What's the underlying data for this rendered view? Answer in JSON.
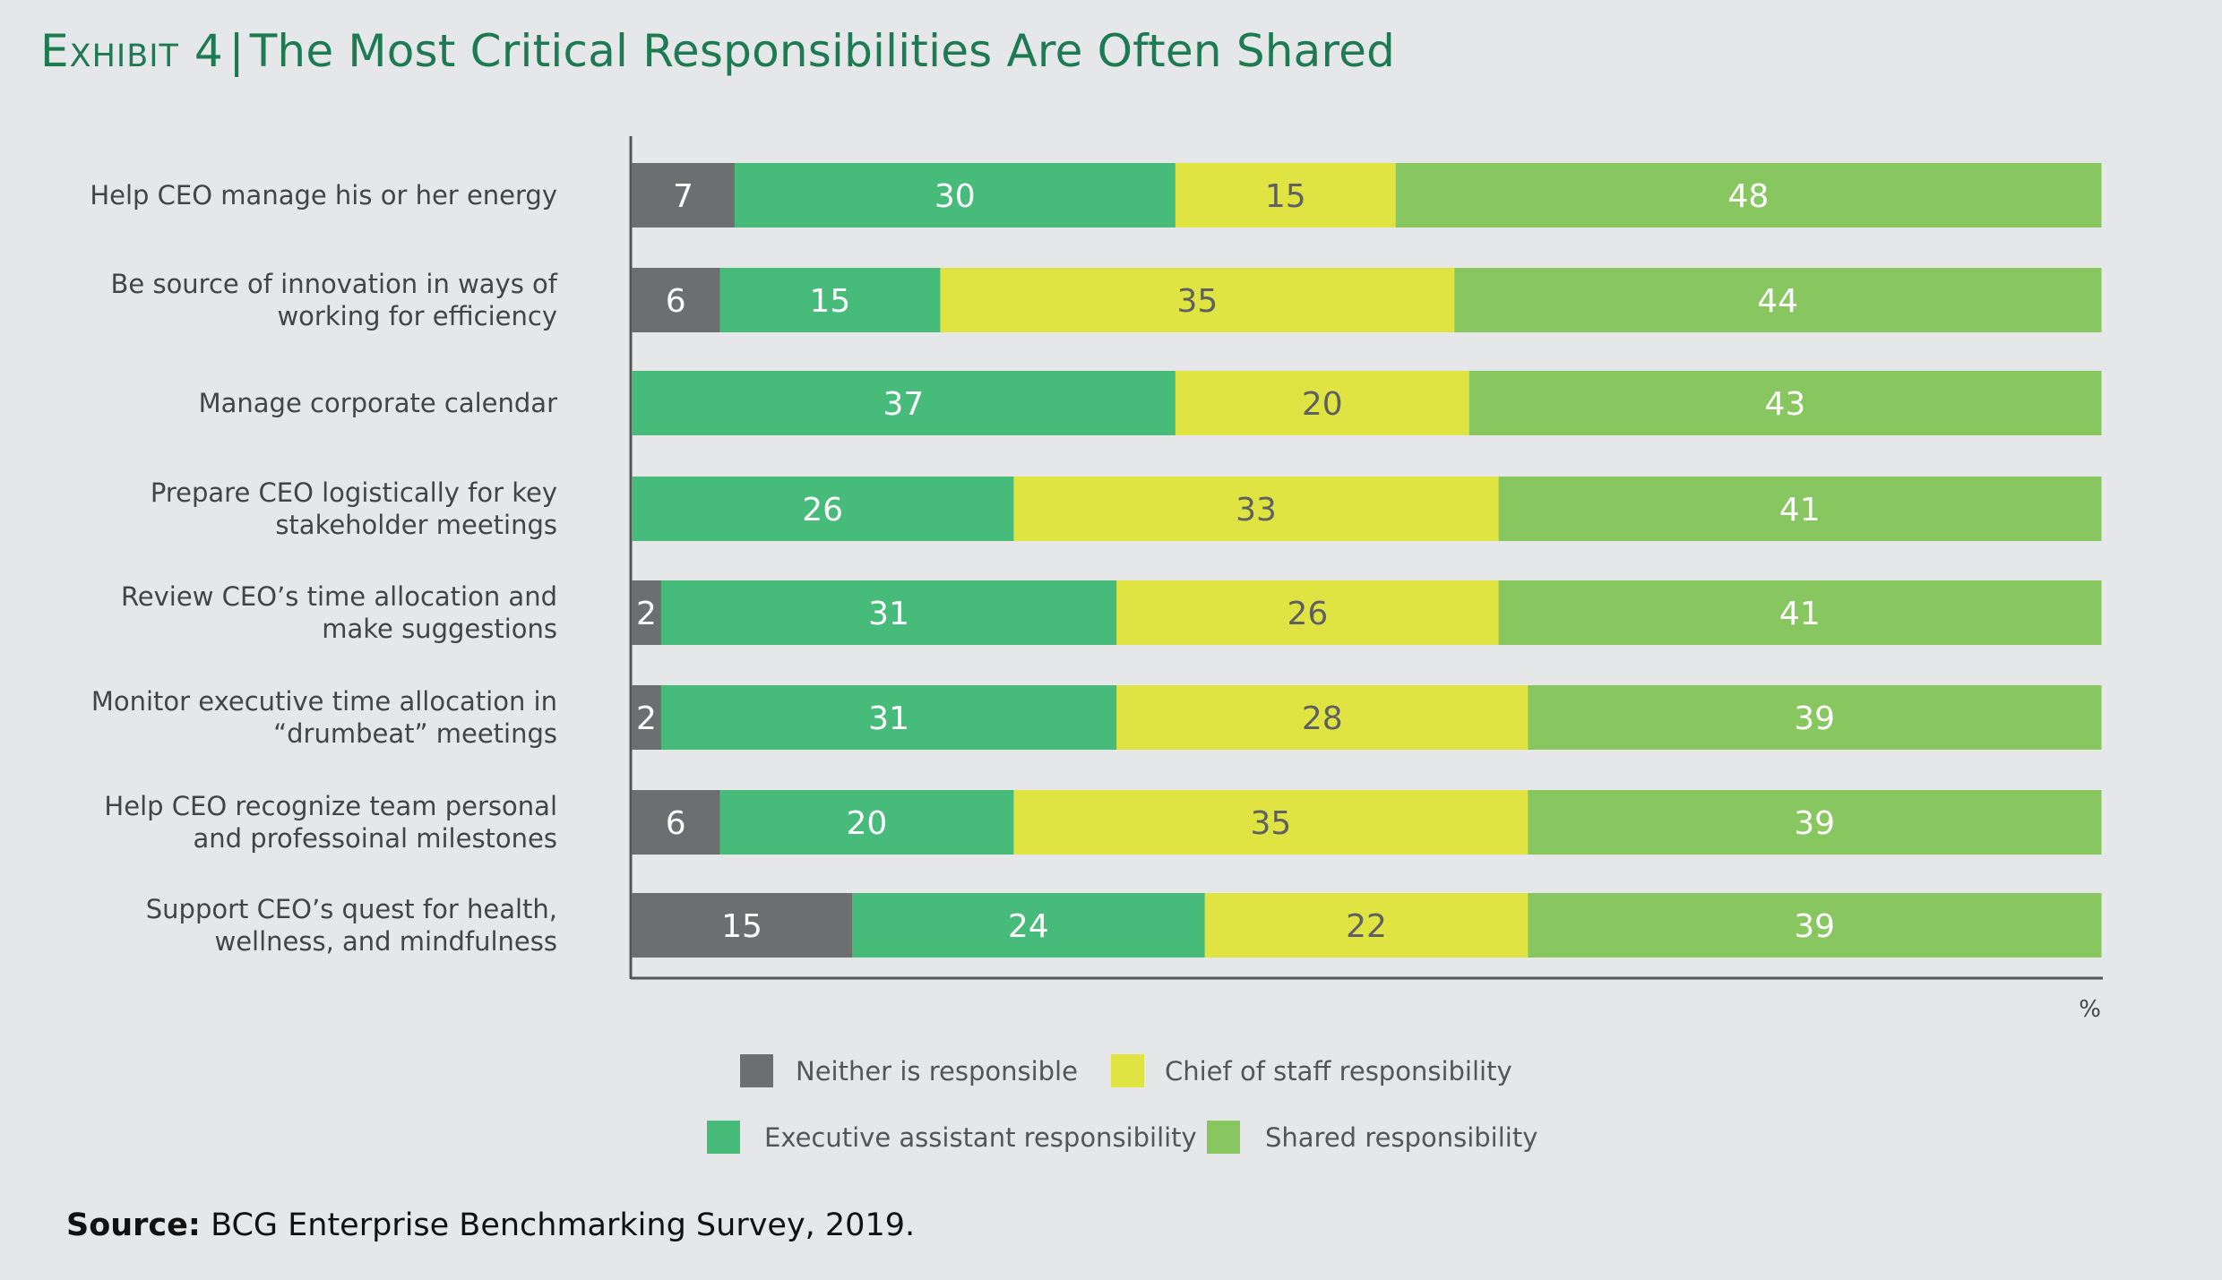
{
  "title": {
    "exhibit": "Exhibit 4",
    "separator": "|",
    "text": "The Most Critical Responsibilities Are Often Shared"
  },
  "chart_data": {
    "type": "bar",
    "orientation": "horizontal",
    "stacked": true,
    "title": "The Most Critical Responsibilities Are Often Shared",
    "unit_label": "%",
    "xlim": [
      0,
      100
    ],
    "categories": [
      [
        "Help CEO manage his or her energy"
      ],
      [
        "Be source of innovation in ways of",
        "working for efficiency"
      ],
      [
        "Manage corporate calendar"
      ],
      [
        "Prepare CEO logistically for key",
        "stakeholder meetings"
      ],
      [
        "Review CEO’s time allocation and",
        "make suggestions"
      ],
      [
        "Monitor executive time allocation in",
        "“drumbeat” meetings"
      ],
      [
        "Help CEO recognize team personal",
        "and professoinal milestones"
      ],
      [
        "Support CEO’s quest for health,",
        "wellness, and mindfulness"
      ]
    ],
    "series": [
      {
        "name": "Neither is responsible",
        "color": "#6d6e70",
        "label_color": "#ffffff",
        "values": [
          7,
          6,
          0,
          0,
          2,
          2,
          6,
          15
        ]
      },
      {
        "name": "Executive assistant responsibility",
        "color": "#46bb7a",
        "label_color": "#ffffff",
        "values": [
          30,
          15,
          37,
          26,
          31,
          31,
          20,
          24
        ]
      },
      {
        "name": "Chief of staff responsibility",
        "color": "#dfe443",
        "label_color": "#5f6062",
        "values": [
          15,
          35,
          20,
          33,
          26,
          28,
          35,
          22
        ]
      },
      {
        "name": "Shared responsibility",
        "color": "#88c760",
        "label_color": "#ffffff",
        "values": [
          48,
          44,
          43,
          41,
          41,
          39,
          39,
          39
        ]
      }
    ]
  },
  "source": {
    "label": "Source:",
    "text": "BCG Enterprise Benchmarking Survey, 2019."
  }
}
